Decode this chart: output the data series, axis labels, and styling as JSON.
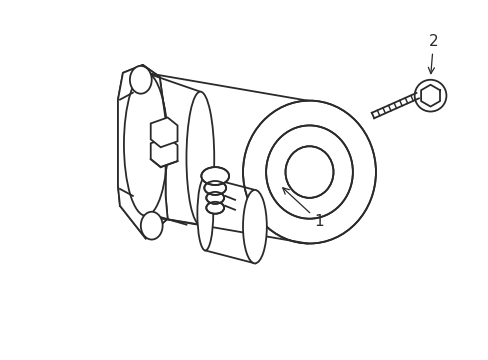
{
  "background_color": "#ffffff",
  "line_color": "#2a2a2a",
  "line_width": 1.3,
  "label_1": "1",
  "label_2": "2",
  "figsize": [
    4.89,
    3.6
  ],
  "dpi": 100
}
